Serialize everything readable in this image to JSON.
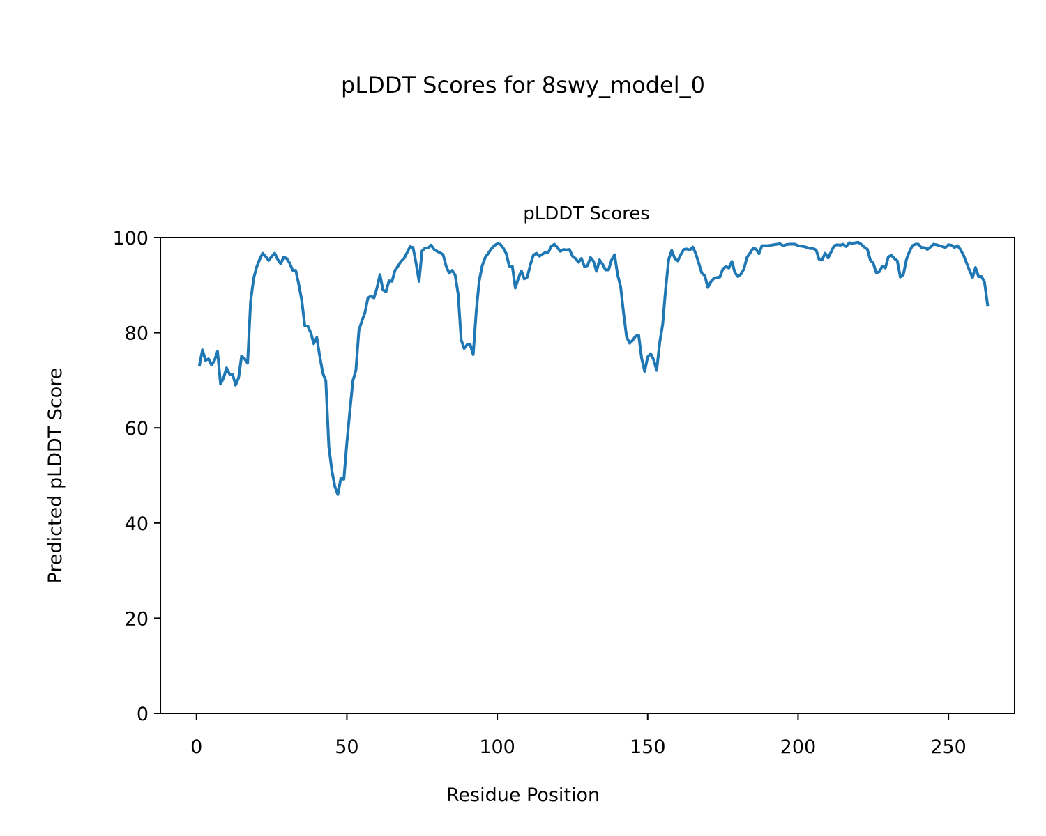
{
  "figure": {
    "suptitle": "pLDDT Scores for 8swy_model_0"
  },
  "chart_data": {
    "type": "line",
    "title": "pLDDT Scores",
    "xlabel": "Residue Position",
    "ylabel": "Predicted pLDDT Score",
    "xlim": [
      -12,
      272
    ],
    "ylim": [
      0,
      100
    ],
    "xticks": [
      0,
      50,
      100,
      150,
      200,
      250
    ],
    "yticks": [
      0,
      20,
      40,
      60,
      80,
      100
    ],
    "grid": false,
    "legend": "none",
    "series": [
      {
        "color": "#1f77b4",
        "x_start": 1,
        "x_step": 1,
        "values": [
          73.2,
          76.4,
          74.2,
          74.5,
          73.2,
          74.2,
          76.1,
          69.2,
          70.5,
          72.6,
          71.3,
          71.3,
          69.0,
          70.5,
          75.1,
          74.5,
          73.6,
          86.6,
          91.4,
          93.8,
          95.4,
          96.7,
          96.0,
          95.2,
          96.0,
          96.7,
          95.4,
          94.5,
          95.9,
          95.6,
          94.6,
          93.1,
          93.1,
          90.2,
          86.8,
          81.5,
          81.4,
          80.0,
          77.7,
          79.0,
          75.0,
          71.5,
          69.9,
          56.1,
          51.1,
          47.7,
          46.0,
          49.4,
          49.2,
          56.9,
          63.6,
          69.9,
          72.1,
          80.5,
          82.5,
          84.2,
          87.3,
          87.7,
          87.3,
          89.4,
          92.2,
          89.0,
          88.6,
          90.9,
          90.8,
          93.1,
          94.0,
          95.0,
          95.6,
          96.8,
          98.1,
          97.9,
          94.6,
          90.8,
          97.2,
          97.8,
          97.8,
          98.4,
          97.5,
          97.1,
          96.8,
          96.4,
          94.0,
          92.5,
          93.1,
          92.1,
          88.1,
          78.5,
          76.7,
          77.5,
          77.5,
          75.4,
          84.4,
          90.9,
          94.1,
          95.8,
          96.7,
          97.6,
          98.3,
          98.7,
          98.6,
          97.8,
          96.6,
          94.0,
          94.0,
          89.4,
          91.4,
          93.0,
          91.3,
          91.7,
          94.3,
          96.3,
          96.7,
          96.1,
          96.5,
          96.9,
          96.9,
          98.2,
          98.6,
          97.9,
          97.1,
          97.5,
          97.4,
          97.5,
          96.1,
          95.6,
          94.8,
          95.6,
          93.9,
          94.1,
          95.8,
          95.0,
          92.9,
          95.3,
          94.4,
          93.2,
          93.2,
          95.3,
          96.4,
          92.2,
          89.7,
          84.1,
          79.1,
          77.8,
          78.4,
          79.3,
          79.5,
          74.6,
          71.9,
          74.9,
          75.6,
          74.3,
          72.1,
          77.9,
          81.8,
          89.4,
          95.4,
          97.3,
          95.6,
          95.1,
          96.4,
          97.5,
          97.6,
          97.4,
          98.0,
          96.6,
          94.6,
          92.5,
          92.0,
          89.5,
          90.7,
          91.4,
          91.6,
          91.7,
          93.4,
          93.9,
          93.6,
          95.0,
          92.6,
          91.8,
          92.3,
          93.4,
          95.8,
          96.7,
          97.7,
          97.6,
          96.6,
          98.3,
          98.3,
          98.3,
          98.4,
          98.5,
          98.6,
          98.7,
          98.3,
          98.5,
          98.6,
          98.6,
          98.6,
          98.3,
          98.2,
          98.1,
          97.9,
          97.7,
          97.7,
          97.4,
          95.4,
          95.3,
          96.7,
          95.7,
          97.0,
          98.3,
          98.5,
          98.4,
          98.6,
          98.1,
          98.9,
          98.8,
          98.9,
          99.0,
          98.6,
          98.0,
          97.6,
          95.3,
          94.6,
          92.6,
          92.8,
          94.0,
          93.6,
          95.9,
          96.3,
          95.6,
          95.1,
          91.7,
          92.2,
          95.3,
          97.0,
          98.3,
          98.6,
          98.6,
          97.9,
          97.9,
          97.5,
          98.0,
          98.6,
          98.5,
          98.3,
          98.1,
          97.9,
          98.5,
          98.4,
          97.9,
          98.3,
          97.5,
          96.3,
          94.7,
          93.1,
          91.6,
          93.7,
          91.8,
          91.8,
          90.6,
          85.9
        ]
      }
    ]
  }
}
